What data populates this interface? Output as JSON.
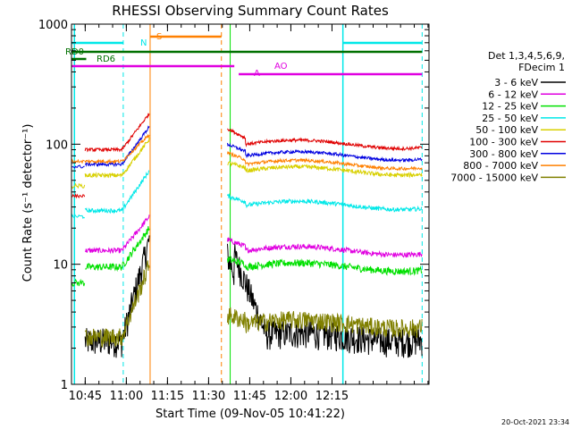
{
  "chart_data": {
    "type": "line",
    "title": "RHESSI Observing Summary Count Rates",
    "xlabel": "Start Time (09-Nov-05 10:41:22)",
    "ylabel": "Count Rate (s⁻¹ detector⁻¹)",
    "y_scale": "log",
    "ylim": [
      1,
      1000
    ],
    "xlim_minutes": [
      -1.37,
      129.0
    ],
    "x_tick_labels": [
      "10:45",
      "11:00",
      "11:15",
      "11:30",
      "11:45",
      "12:00",
      "12:15"
    ],
    "y_tick_labels": [
      "1",
      "10",
      "100",
      "1000"
    ],
    "legend_header": [
      "Det 1,3,4,5,6,9,",
      "FDecim 1"
    ],
    "legend_position": "right",
    "footer_date": "20-Oct-2021 23:34",
    "series": [
      {
        "name": "3 - 6 keV",
        "color": "#000000"
      },
      {
        "name": "6 - 12 keV",
        "color": "#e000e0"
      },
      {
        "name": "12 - 25 keV",
        "color": "#00e000"
      },
      {
        "name": "25 - 50 keV",
        "color": "#00e8e8"
      },
      {
        "name": "50 - 100 keV",
        "color": "#d8d000"
      },
      {
        "name": "100 - 300 keV",
        "color": "#e00000"
      },
      {
        "name": "300 - 800 keV",
        "color": "#0000e0"
      },
      {
        "name": "800 - 7000 keV",
        "color": "#ff8000"
      },
      {
        "name": "7000 - 15000 keV",
        "color": "#808000"
      }
    ],
    "flag_labels": {
      "N": "N",
      "S": "S",
      "RD0": "RD0",
      "RD6": "RD6",
      "A": "A",
      "AO": "AO"
    }
  }
}
